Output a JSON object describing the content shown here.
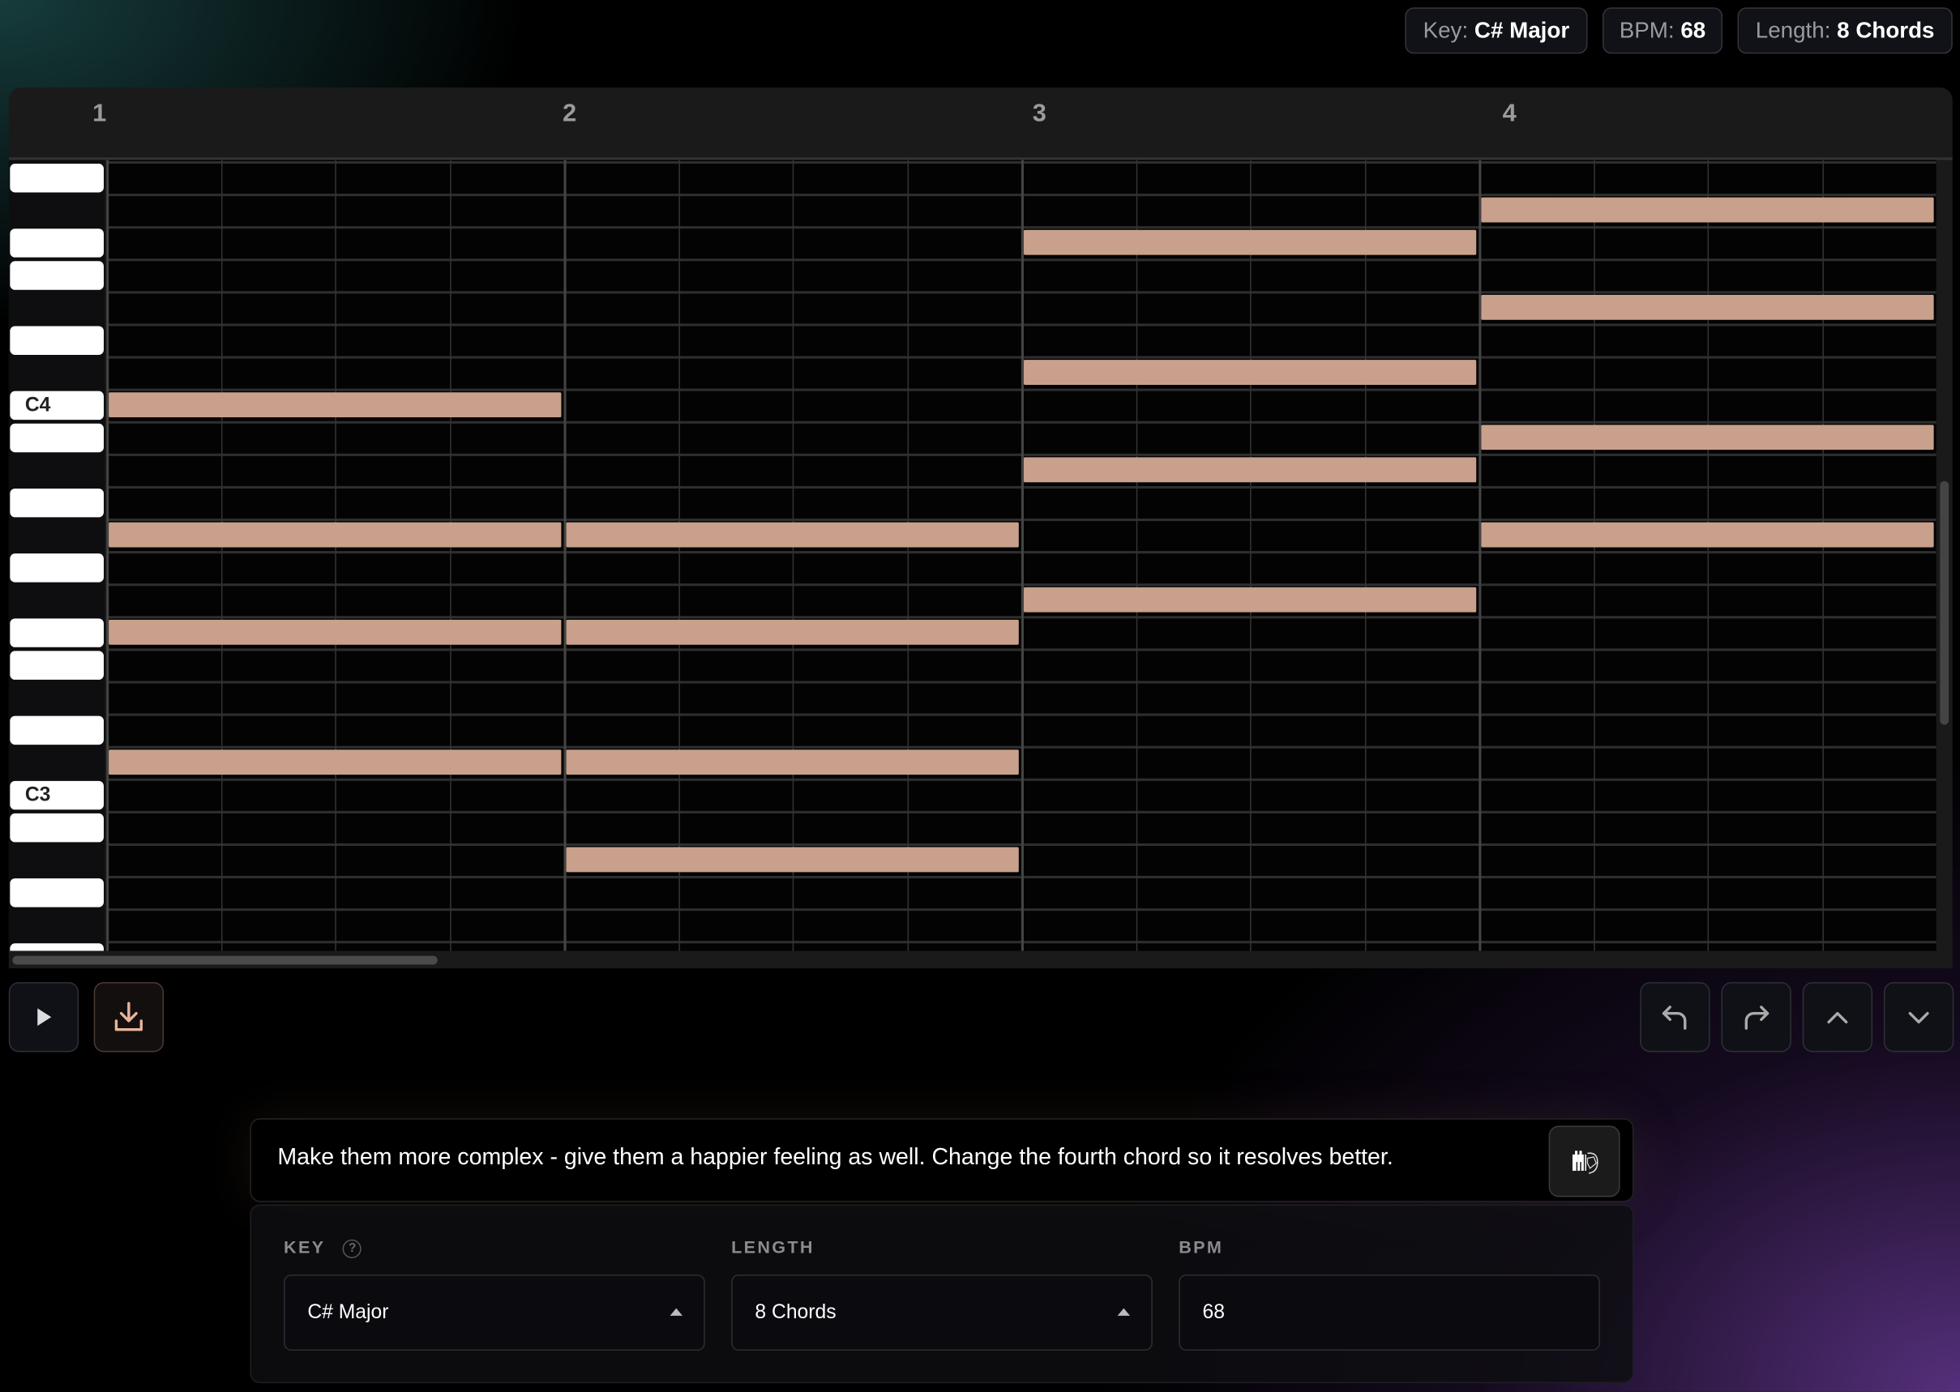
{
  "header": {
    "key_badge": {
      "label": "Key:",
      "value": "C# Major"
    },
    "bpm_badge": {
      "label": "BPM:",
      "value": "68"
    },
    "length_badge": {
      "label": "Length:",
      "value": "8 Chords"
    }
  },
  "piano_roll": {
    "bar_numbers": [
      "1",
      "2",
      "3",
      "4"
    ],
    "beats_per_bar": 4,
    "pitches": [
      "G4",
      "F#4",
      "F4",
      "E4",
      "D#4",
      "D4",
      "C#4",
      "C4",
      "B3",
      "A#3",
      "A3",
      "G#3",
      "G3",
      "F#3",
      "F3",
      "E3",
      "D#3",
      "D3",
      "C#3",
      "C3",
      "B2",
      "A#2",
      "A2",
      "G#2",
      "G2"
    ],
    "key_labels": {
      "C4": "C4",
      "C3": "C3"
    },
    "chords": [
      {
        "bar": 1,
        "notes": [
          "C4",
          "G#3",
          "F3",
          "C#3"
        ]
      },
      {
        "bar": 2,
        "notes": [
          "G#3",
          "F3",
          "C#3",
          "A#2"
        ]
      },
      {
        "bar": 3,
        "notes": [
          "F4",
          "C#4",
          "A#3",
          "F#3"
        ]
      },
      {
        "bar": 4,
        "notes": [
          "F#4",
          "D#4",
          "B3",
          "G#3"
        ]
      }
    ],
    "note_color": "#c9a08b"
  },
  "controls": {
    "play_icon": "play-icon",
    "download_icon": "download-icon",
    "undo_icon": "undo-icon",
    "redo_icon": "redo-icon",
    "up_icon": "chevron-up-icon",
    "down_icon": "chevron-down-icon"
  },
  "prompt": {
    "text": "Make them more complex - give them a happier feeling as well. Change the fourth chord so it resolves better.",
    "send_icon": "piano-brain-icon"
  },
  "settings": {
    "key": {
      "label": "KEY",
      "help": "?",
      "value": "C# Major"
    },
    "length": {
      "label": "LENGTH",
      "value": "8 Chords"
    },
    "bpm": {
      "label": "BPM",
      "value": "68"
    }
  }
}
